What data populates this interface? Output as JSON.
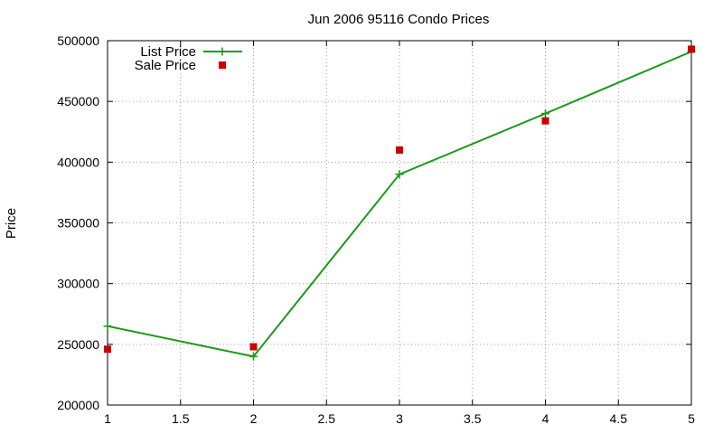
{
  "chart_data": {
    "type": "line",
    "title": "Jun 2006 95116 Condo Prices",
    "xlabel": "",
    "ylabel": "Price",
    "xlim": [
      1,
      5
    ],
    "ylim": [
      200000,
      500000
    ],
    "x_ticks": [
      "1",
      "1.5",
      "2",
      "2.5",
      "3",
      "3.5",
      "4",
      "4.5",
      "5"
    ],
    "y_ticks": [
      "200000",
      "250000",
      "300000",
      "350000",
      "400000",
      "450000",
      "500000"
    ],
    "grid": true,
    "legend_position": "top-left",
    "series": [
      {
        "name": "List Price",
        "style": "line-with-plus-markers",
        "color": "#1a9a1a",
        "x": [
          1,
          2,
          3,
          4,
          5
        ],
        "y": [
          265000,
          240000,
          390000,
          440000,
          491000
        ]
      },
      {
        "name": "Sale Price",
        "style": "square-markers",
        "color": "#cc0000",
        "x": [
          1,
          2,
          3,
          4,
          5
        ],
        "y": [
          246000,
          248000,
          410000,
          434000,
          493000
        ]
      }
    ]
  }
}
